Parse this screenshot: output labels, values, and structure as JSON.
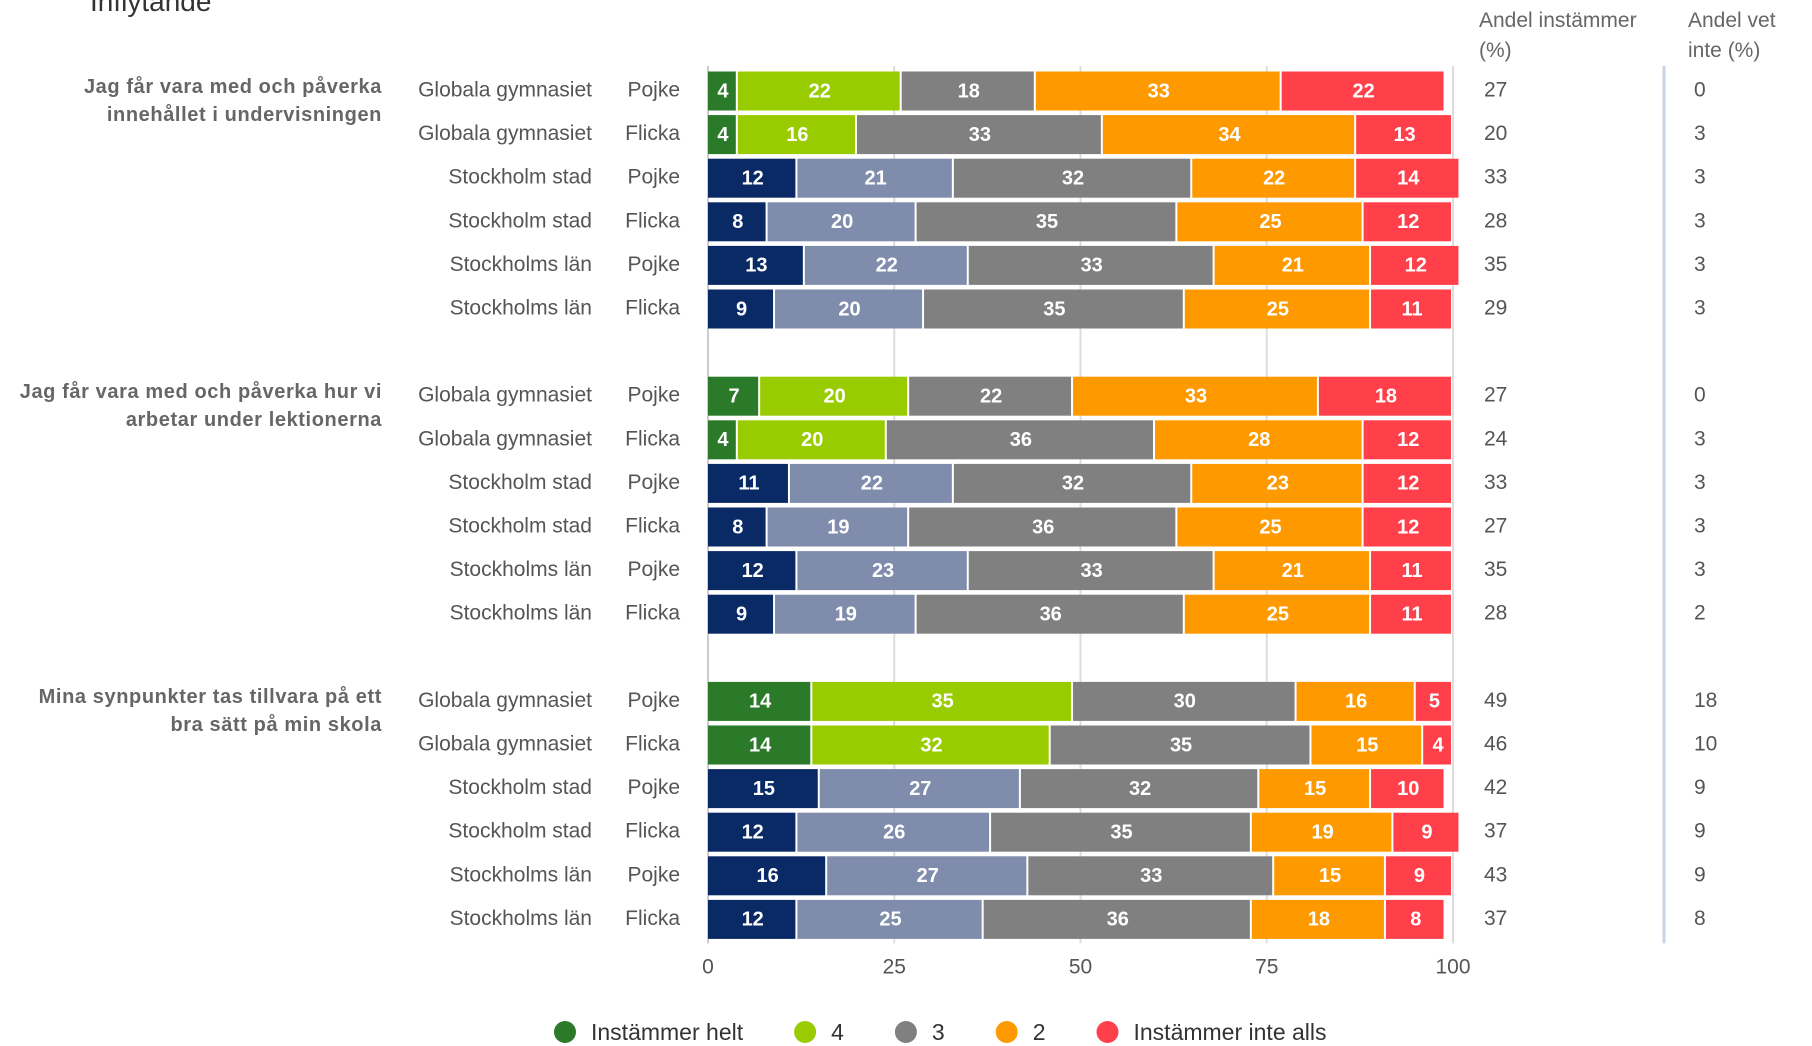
{
  "chart_data": {
    "type": "stacked_bar_horizontal",
    "title": "Inflytande",
    "groups": [
      "Jag får vara med och påverka innehållet i undervisningen",
      "Jag får vara med och påverka hur vi arbetar under lektionerna",
      "Mina synpunkter tas tillvara på ett bra sätt på min skola"
    ],
    "categories": [
      "Globala gymnasiet",
      "Globala gymnasiet",
      "Stockholm stad",
      "Stockholm stad",
      "Stockholms län",
      "Stockholms län",
      "Globala gymnasiet",
      "Globala gymnasiet",
      "Stockholm stad",
      "Stockholm stad",
      "Stockholms län",
      "Stockholms län",
      "Globala gymnasiet",
      "Globala gymnasiet",
      "Stockholm stad",
      "Stockholm stad",
      "Stockholms län",
      "Stockholms län"
    ],
    "genders": [
      "Pojke",
      "Flicka",
      "Pojke",
      "Flicka",
      "Pojke",
      "Flicka",
      "Pojke",
      "Flicka",
      "Pojke",
      "Flicka",
      "Pojke",
      "Flicka",
      "Pojke",
      "Flicka",
      "Pojke",
      "Flicka",
      "Pojke",
      "Flicka"
    ],
    "series": [
      {
        "name": "Instämmer helt",
        "color": "#2a7a2a",
        "colors": [
          "#2a7a2a",
          "#2a7a2a",
          "#0a2a66",
          "#0a2a66",
          "#0a2a66",
          "#0a2a66",
          "#2a7a2a",
          "#2a7a2a",
          "#0a2a66",
          "#0a2a66",
          "#0a2a66",
          "#0a2a66",
          "#2a7a2a",
          "#2a7a2a",
          "#0a2a66",
          "#0a2a66",
          "#0a2a66",
          "#0a2a66"
        ],
        "values": [
          4,
          4,
          12,
          8,
          13,
          9,
          7,
          4,
          11,
          8,
          12,
          9,
          14,
          14,
          15,
          12,
          16,
          12
        ]
      },
      {
        "name": "4",
        "color": "#99cc00",
        "colors": [
          "#99cc00",
          "#99cc00",
          "#7f8cab",
          "#7f8cab",
          "#7f8cab",
          "#7f8cab",
          "#99cc00",
          "#99cc00",
          "#7f8cab",
          "#7f8cab",
          "#7f8cab",
          "#7f8cab",
          "#99cc00",
          "#99cc00",
          "#7f8cab",
          "#7f8cab",
          "#7f8cab",
          "#7f8cab"
        ],
        "values": [
          22,
          16,
          21,
          20,
          22,
          20,
          20,
          20,
          22,
          19,
          23,
          19,
          35,
          32,
          27,
          26,
          27,
          25
        ]
      },
      {
        "name": "3",
        "color": "#808080",
        "values": [
          18,
          33,
          32,
          35,
          33,
          35,
          22,
          36,
          32,
          36,
          33,
          36,
          30,
          35,
          32,
          35,
          33,
          36
        ]
      },
      {
        "name": "2",
        "color": "#ff9900",
        "values": [
          33,
          34,
          22,
          25,
          21,
          25,
          33,
          28,
          23,
          25,
          21,
          25,
          16,
          15,
          15,
          19,
          15,
          18
        ]
      },
      {
        "name": "Instämmer inte alls",
        "color": "#ff3f4a",
        "values": [
          22,
          13,
          14,
          12,
          12,
          11,
          18,
          12,
          12,
          12,
          11,
          11,
          5,
          4,
          10,
          9,
          9,
          8
        ]
      }
    ],
    "andel_instammer": {
      "label": "Andel instämmer (%)",
      "values": [
        27,
        20,
        33,
        28,
        35,
        29,
        27,
        24,
        33,
        27,
        35,
        28,
        49,
        46,
        42,
        37,
        43,
        37
      ]
    },
    "andel_vet_inte": {
      "label": "Andel vet inte (%)",
      "values": [
        0,
        3,
        3,
        3,
        3,
        3,
        0,
        3,
        3,
        3,
        3,
        2,
        18,
        10,
        9,
        9,
        9,
        8
      ]
    },
    "xlim": [
      0,
      100
    ],
    "xticks": [
      0,
      25,
      50,
      75,
      100
    ],
    "grid": true
  }
}
